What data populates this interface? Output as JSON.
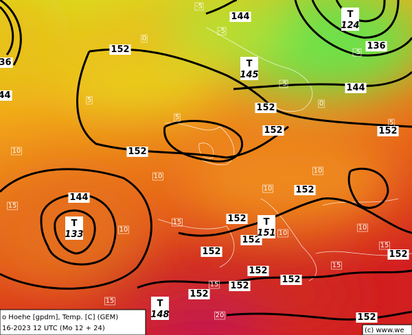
{
  "caption": {
    "line1": "o Hoehe [gpdm], Temp. [C] (GEM)",
    "line2": "16-2023 12 UTC (Mo 12 + 24)",
    "credit": "(c) www.we"
  },
  "contour_labels": [
    "152",
    "144",
    "136",
    "144",
    "152",
    "152",
    "152",
    "152",
    "152",
    "144",
    "152",
    "152",
    "152",
    "152",
    "152",
    "152",
    "152",
    "152",
    "152",
    "144",
    "136"
  ],
  "centers": [
    {
      "marker": "T",
      "value": "124"
    },
    {
      "marker": "T",
      "value": "145"
    },
    {
      "marker": "T",
      "value": "133"
    },
    {
      "marker": "T",
      "value": "151"
    },
    {
      "marker": "T",
      "value": "148"
    }
  ],
  "temp_labels": [
    "-5",
    "-5",
    "0",
    "-5",
    "5",
    "5",
    "10",
    "10",
    "10",
    "10",
    "10",
    "15",
    "15",
    "15",
    "15",
    "15",
    "15",
    "20",
    "10",
    "10",
    "-5",
    "0",
    "5"
  ]
}
